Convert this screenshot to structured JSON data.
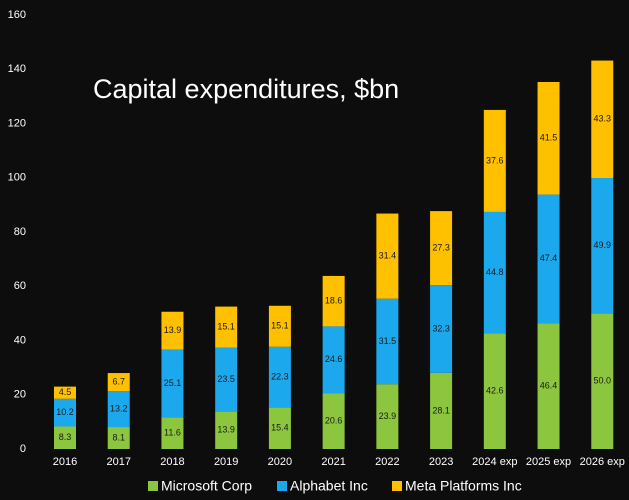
{
  "chart_data": {
    "type": "stacked_bar",
    "title": "Capital expenditures, $bn",
    "categories": [
      "2016",
      "2017",
      "2018",
      "2019",
      "2020",
      "2021",
      "2022",
      "2023",
      "2024 exp",
      "2025 exp",
      "2026 exp"
    ],
    "series": [
      {
        "name": "Microsoft Corp",
        "color": "#8cc63f",
        "values": [
          8.3,
          8.1,
          11.6,
          13.9,
          15.4,
          20.6,
          23.9,
          28.1,
          42.6,
          46.4,
          50.0
        ],
        "value_labels": [
          "8.3",
          "8.1",
          "11.6",
          "13.9",
          "15.4",
          "20.6",
          "23.9",
          "28.1",
          "42.6",
          "46.4",
          "50.0"
        ]
      },
      {
        "name": "Alphabet Inc",
        "color": "#1ba8ec",
        "values": [
          10.2,
          13.2,
          25.1,
          23.5,
          22.3,
          24.6,
          31.5,
          32.3,
          44.8,
          47.4,
          49.9
        ],
        "value_labels": [
          "10.2",
          "13.2",
          "25.1",
          "23.5",
          "22.3",
          "24.6",
          "31.5",
          "32.3",
          "44.8",
          "47.4",
          "49.9"
        ]
      },
      {
        "name": "Meta Platforms Inc",
        "color": "#ffc000",
        "values": [
          4.5,
          6.7,
          13.9,
          15.1,
          15.1,
          18.6,
          31.4,
          27.3,
          37.6,
          41.5,
          43.3
        ],
        "value_labels": [
          "4.5",
          "6.7",
          "13.9",
          "15.1",
          "15.1",
          "18.6",
          "31.4",
          "27.3",
          "37.6",
          "41.5",
          "43.3"
        ]
      }
    ],
    "ylim": [
      0,
      160
    ],
    "yticks": [
      0,
      20,
      40,
      60,
      80,
      100,
      120,
      140,
      160
    ],
    "legend": "bottom"
  }
}
